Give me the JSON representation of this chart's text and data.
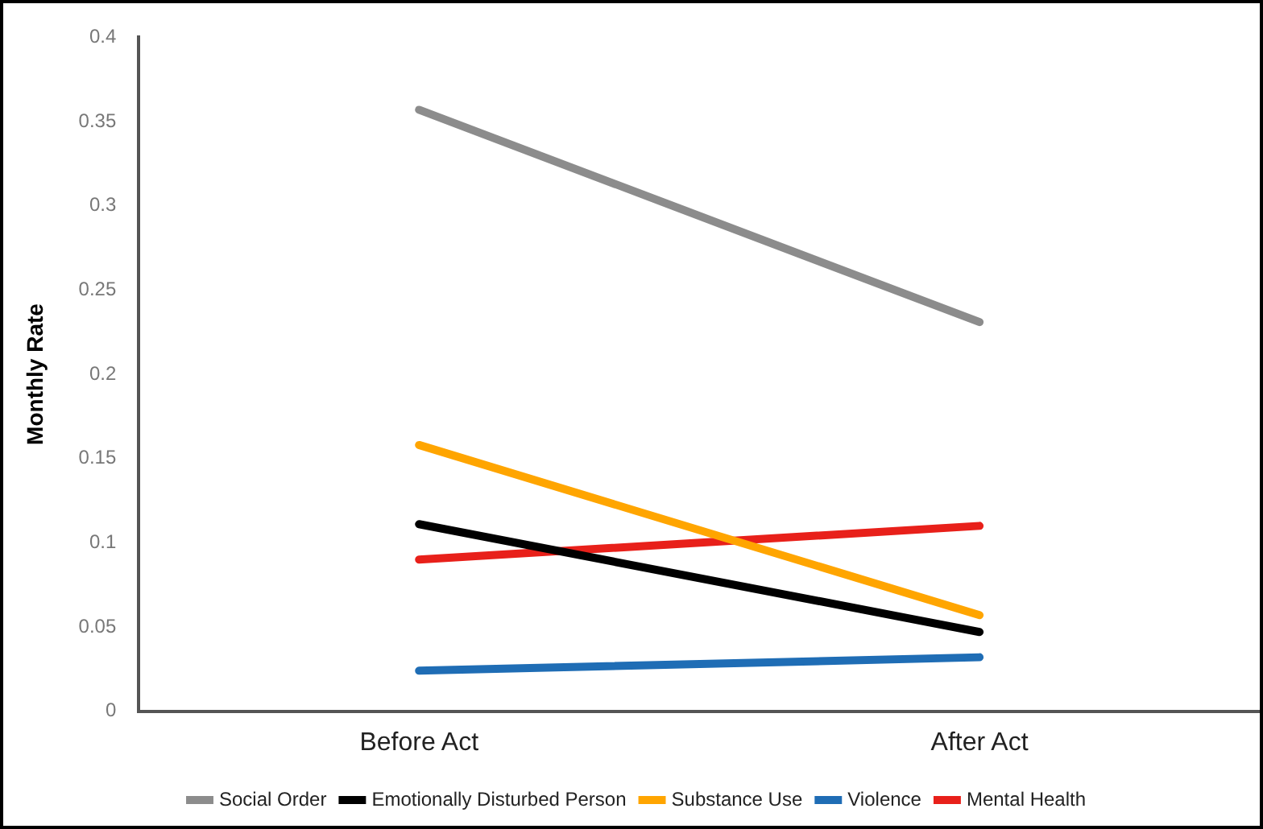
{
  "chart_data": {
    "type": "line",
    "ylabel": "Monthly Rate",
    "categories": [
      "Before Act",
      "After Act"
    ],
    "series": [
      {
        "name": "Social Order",
        "color": "#8c8c8c",
        "values": [
          0.357,
          0.231
        ]
      },
      {
        "name": "Emotionally Disturbed Person",
        "color": "#000000",
        "values": [
          0.111,
          0.047
        ]
      },
      {
        "name": "Substance Use",
        "color": "#ffa500",
        "values": [
          0.158,
          0.057
        ]
      },
      {
        "name": "Violence",
        "color": "#1f6db5",
        "values": [
          0.024,
          0.032
        ]
      },
      {
        "name": "Mental Health",
        "color": "#e8201a",
        "values": [
          0.09,
          0.11
        ]
      }
    ],
    "ylim": [
      0,
      0.4
    ],
    "yticks": [
      0,
      0.05,
      0.1,
      0.15,
      0.2,
      0.25,
      0.3,
      0.35,
      0.4
    ],
    "grid": false,
    "legend": "bottom",
    "marker": "none",
    "line_style": "solid"
  }
}
